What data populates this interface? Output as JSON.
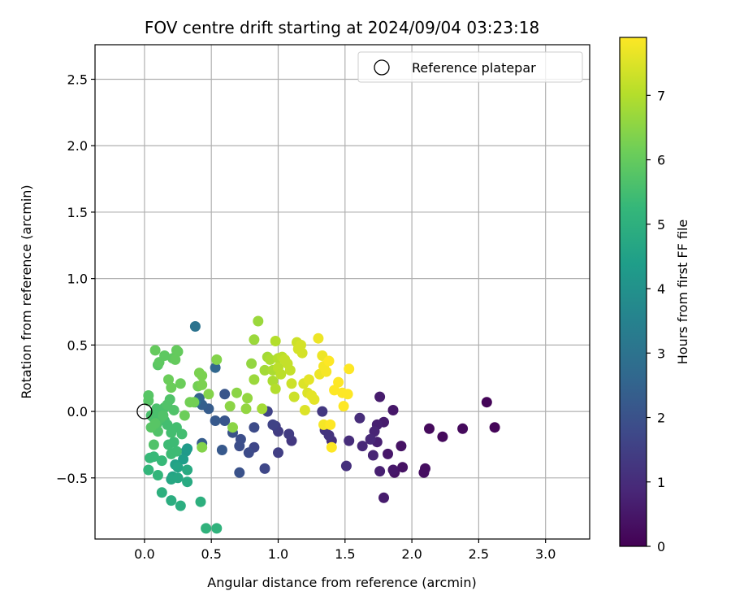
{
  "chart_data": {
    "type": "scatter",
    "title": "FOV centre drift starting at 2024/09/04 03:23:18",
    "xlabel": "Angular distance from reference (arcmin)",
    "ylabel": "Rotation from reference (arcmin)",
    "xlim": [
      -0.37,
      3.33
    ],
    "ylim": [
      -0.96,
      2.76
    ],
    "x_ticks": [
      0.0,
      0.5,
      1.0,
      1.5,
      2.0,
      2.5,
      3.0
    ],
    "x_tick_labels": [
      "0.0",
      "0.5",
      "1.0",
      "1.5",
      "2.0",
      "2.5",
      "3.0"
    ],
    "y_ticks": [
      -0.5,
      0.0,
      0.5,
      1.0,
      1.5,
      2.0,
      2.5
    ],
    "y_tick_labels": [
      "−0.5",
      "0.0",
      "0.5",
      "1.0",
      "1.5",
      "2.0",
      "2.5"
    ],
    "grid": true,
    "legend": {
      "position": "top-right",
      "entries": [
        "Reference platepar"
      ]
    },
    "reference_point": {
      "x": 0.0,
      "y": 0.0,
      "label": "Reference platepar"
    },
    "colorbar": {
      "label": "Hours from first FF file",
      "min": 0,
      "max": 7.9,
      "ticks": [
        0,
        1,
        2,
        3,
        4,
        5,
        6,
        7
      ],
      "tick_labels": [
        "0",
        "1",
        "2",
        "3",
        "4",
        "5",
        "6",
        "7"
      ],
      "colormap": "viridis"
    },
    "colormap_stops": [
      "#440154",
      "#482878",
      "#3e4989",
      "#31688e",
      "#26828e",
      "#1f9e89",
      "#35b779",
      "#6ece58",
      "#b5de2b",
      "#fde725"
    ],
    "points": [
      [
        2.56,
        0.07,
        0.1
      ],
      [
        2.62,
        -0.12,
        0.1
      ],
      [
        2.38,
        -0.13,
        0.2
      ],
      [
        2.23,
        -0.19,
        0.2
      ],
      [
        2.13,
        -0.13,
        0.2
      ],
      [
        2.1,
        -0.43,
        0.3
      ],
      [
        2.09,
        -0.46,
        0.3
      ],
      [
        1.93,
        -0.42,
        0.4
      ],
      [
        1.92,
        -0.26,
        0.4
      ],
      [
        1.87,
        -0.46,
        0.4
      ],
      [
        1.86,
        -0.44,
        0.5
      ],
      [
        1.86,
        0.01,
        0.5
      ],
      [
        1.82,
        -0.32,
        0.5
      ],
      [
        1.79,
        -0.08,
        0.6
      ],
      [
        1.79,
        -0.65,
        0.6
      ],
      [
        1.76,
        0.11,
        0.6
      ],
      [
        1.76,
        -0.45,
        0.7
      ],
      [
        1.74,
        -0.23,
        0.7
      ],
      [
        1.74,
        -0.1,
        0.7
      ],
      [
        1.72,
        -0.15,
        0.8
      ],
      [
        1.71,
        -0.33,
        0.8
      ],
      [
        1.69,
        -0.21,
        0.9
      ],
      [
        1.63,
        -0.26,
        0.9
      ],
      [
        1.61,
        -0.05,
        1.0
      ],
      [
        1.53,
        -0.22,
        1.0
      ],
      [
        1.51,
        -0.41,
        1.1
      ],
      [
        1.4,
        -0.22,
        1.1
      ],
      [
        1.38,
        -0.18,
        1.2
      ],
      [
        1.35,
        -0.14,
        1.2
      ],
      [
        1.33,
        0.0,
        1.3
      ],
      [
        1.1,
        -0.22,
        1.3
      ],
      [
        1.08,
        -0.17,
        1.4
      ],
      [
        1.0,
        -0.15,
        1.4
      ],
      [
        0.98,
        -0.11,
        1.5
      ],
      [
        1.0,
        -0.31,
        1.5
      ],
      [
        0.96,
        -0.1,
        1.6
      ],
      [
        0.92,
        0.0,
        1.6
      ],
      [
        0.9,
        -0.43,
        1.7
      ],
      [
        0.82,
        -0.27,
        1.7
      ],
      [
        0.82,
        -0.12,
        1.8
      ],
      [
        0.78,
        -0.31,
        1.8
      ],
      [
        0.72,
        -0.21,
        1.9
      ],
      [
        0.71,
        -0.26,
        1.9
      ],
      [
        0.71,
        -0.46,
        2.0
      ],
      [
        0.66,
        -0.16,
        2.0
      ],
      [
        0.6,
        -0.07,
        2.1
      ],
      [
        0.6,
        0.13,
        2.1
      ],
      [
        0.58,
        -0.29,
        2.2
      ],
      [
        0.53,
        -0.07,
        2.2
      ],
      [
        0.48,
        0.02,
        2.3
      ],
      [
        0.43,
        -0.24,
        2.3
      ],
      [
        0.43,
        0.05,
        2.4
      ],
      [
        0.41,
        0.1,
        2.5
      ],
      [
        0.53,
        0.33,
        2.6
      ],
      [
        0.38,
        0.64,
        3.0
      ],
      [
        0.38,
        0.07,
        3.2
      ],
      [
        0.31,
        -0.3,
        4.2
      ],
      [
        0.32,
        -0.28,
        4.3
      ],
      [
        0.29,
        -0.36,
        4.4
      ],
      [
        0.23,
        -0.4,
        4.5
      ],
      [
        0.25,
        -0.42,
        4.6
      ],
      [
        0.21,
        -0.49,
        4.6
      ],
      [
        0.2,
        -0.51,
        4.7
      ],
      [
        0.25,
        -0.5,
        4.7
      ],
      [
        0.32,
        -0.44,
        4.8
      ],
      [
        0.32,
        -0.53,
        4.8
      ],
      [
        0.27,
        -0.71,
        4.9
      ],
      [
        0.2,
        -0.67,
        4.9
      ],
      [
        0.13,
        -0.61,
        5.0
      ],
      [
        0.42,
        -0.68,
        5.0
      ],
      [
        0.46,
        -0.88,
        5.1
      ],
      [
        0.54,
        -0.88,
        5.1
      ],
      [
        0.03,
        -0.44,
        5.2
      ],
      [
        0.1,
        -0.48,
        5.2
      ],
      [
        0.04,
        -0.35,
        5.3
      ],
      [
        0.07,
        -0.34,
        5.3
      ],
      [
        0.13,
        -0.37,
        5.3
      ],
      [
        0.18,
        -0.25,
        5.4
      ],
      [
        0.22,
        -0.23,
        5.4
      ],
      [
        0.2,
        -0.32,
        5.4
      ],
      [
        0.24,
        -0.3,
        5.4
      ],
      [
        0.28,
        -0.17,
        5.5
      ],
      [
        0.24,
        -0.12,
        5.5
      ],
      [
        0.2,
        -0.16,
        5.5
      ],
      [
        0.17,
        -0.1,
        5.5
      ],
      [
        0.15,
        -0.07,
        5.5
      ],
      [
        0.12,
        -0.05,
        5.6
      ],
      [
        0.09,
        -0.1,
        5.6
      ],
      [
        0.07,
        -0.05,
        5.6
      ],
      [
        0.05,
        -0.03,
        5.6
      ],
      [
        0.09,
        0.02,
        5.6
      ],
      [
        0.12,
        0.0,
        5.6
      ],
      [
        0.15,
        0.03,
        5.6
      ],
      [
        0.17,
        0.05,
        5.7
      ],
      [
        0.19,
        0.09,
        5.7
      ],
      [
        0.22,
        0.01,
        5.7
      ],
      [
        0.14,
        -0.03,
        5.7
      ],
      [
        0.1,
        -0.15,
        5.7
      ],
      [
        0.07,
        -0.25,
        5.7
      ],
      [
        0.05,
        -0.12,
        5.8
      ],
      [
        0.08,
        -0.09,
        5.8
      ],
      [
        0.03,
        0.08,
        5.8
      ],
      [
        0.03,
        0.12,
        5.8
      ],
      [
        0.1,
        0.35,
        5.8
      ],
      [
        0.11,
        0.37,
        5.9
      ],
      [
        0.15,
        0.42,
        5.9
      ],
      [
        0.21,
        0.4,
        5.9
      ],
      [
        0.23,
        0.39,
        6.0
      ],
      [
        0.25,
        0.45,
        6.0
      ],
      [
        0.24,
        0.46,
        6.0
      ],
      [
        0.08,
        0.46,
        6.0
      ],
      [
        0.2,
        0.18,
        6.1
      ],
      [
        0.18,
        0.24,
        6.1
      ],
      [
        0.27,
        0.21,
        6.1
      ],
      [
        0.3,
        -0.03,
        6.1
      ],
      [
        0.34,
        0.07,
        6.2
      ],
      [
        0.37,
        0.07,
        6.2
      ],
      [
        0.4,
        0.19,
        6.2
      ],
      [
        0.41,
        0.29,
        6.3
      ],
      [
        0.43,
        0.27,
        6.3
      ],
      [
        0.43,
        0.2,
        6.3
      ],
      [
        0.43,
        -0.27,
        6.4
      ],
      [
        0.48,
        0.13,
        6.4
      ],
      [
        0.54,
        0.39,
        6.4
      ],
      [
        0.64,
        0.04,
        6.5
      ],
      [
        0.66,
        -0.12,
        6.5
      ],
      [
        0.69,
        0.14,
        6.5
      ],
      [
        0.76,
        0.02,
        6.6
      ],
      [
        0.77,
        0.1,
        6.6
      ],
      [
        0.8,
        0.36,
        6.6
      ],
      [
        0.82,
        0.24,
        6.7
      ],
      [
        0.82,
        0.54,
        6.7
      ],
      [
        0.85,
        0.68,
        6.7
      ],
      [
        0.88,
        0.02,
        6.8
      ],
      [
        0.9,
        0.31,
        6.8
      ],
      [
        0.92,
        0.41,
        6.8
      ],
      [
        0.94,
        0.39,
        6.9
      ],
      [
        0.96,
        0.31,
        6.9
      ],
      [
        0.96,
        0.23,
        6.9
      ],
      [
        0.98,
        0.17,
        7.0
      ],
      [
        0.98,
        0.53,
        7.0
      ],
      [
        1.0,
        0.4,
        7.0
      ],
      [
        1.0,
        0.33,
        7.1
      ],
      [
        1.02,
        0.28,
        7.1
      ],
      [
        1.03,
        0.41,
        7.1
      ],
      [
        1.05,
        0.39,
        7.2
      ],
      [
        1.07,
        0.36,
        7.2
      ],
      [
        1.09,
        0.31,
        7.2
      ],
      [
        1.1,
        0.21,
        7.3
      ],
      [
        1.12,
        0.11,
        7.3
      ],
      [
        1.14,
        0.52,
        7.3
      ],
      [
        1.15,
        0.47,
        7.4
      ],
      [
        1.17,
        0.5,
        7.4
      ],
      [
        1.18,
        0.44,
        7.4
      ],
      [
        1.19,
        0.21,
        7.5
      ],
      [
        1.2,
        0.01,
        7.5
      ],
      [
        1.22,
        0.14,
        7.5
      ],
      [
        1.23,
        0.24,
        7.6
      ],
      [
        1.25,
        0.12,
        7.6
      ],
      [
        1.27,
        0.09,
        7.6
      ],
      [
        1.3,
        0.55,
        7.7
      ],
      [
        1.31,
        0.28,
        7.7
      ],
      [
        1.33,
        0.42,
        7.7
      ],
      [
        1.34,
        0.34,
        7.8
      ],
      [
        1.34,
        -0.1,
        7.8
      ],
      [
        1.36,
        0.3,
        7.8
      ],
      [
        1.38,
        0.38,
        7.9
      ],
      [
        1.39,
        -0.1,
        7.9
      ],
      [
        1.4,
        -0.27,
        7.9
      ],
      [
        1.42,
        0.16,
        7.9
      ],
      [
        1.45,
        0.22,
        7.9
      ],
      [
        1.48,
        0.14,
        7.9
      ],
      [
        1.49,
        0.04,
        7.9
      ],
      [
        1.52,
        0.13,
        7.9
      ],
      [
        1.53,
        0.32,
        7.9
      ]
    ]
  }
}
